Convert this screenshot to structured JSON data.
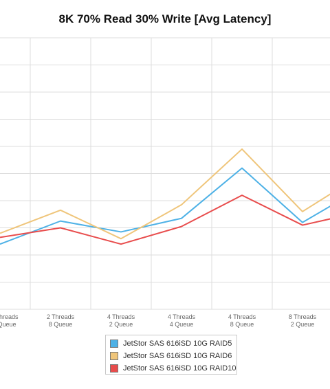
{
  "chart_data": {
    "type": "line",
    "title": "8K 70% Read 30% Write [Avg Latency]",
    "categories": [
      [
        "Threads",
        "Queue"
      ],
      [
        "2 Threads",
        "8 Queue"
      ],
      [
        "4 Threads",
        "2 Queue"
      ],
      [
        "4 Threads",
        "4 Queue"
      ],
      [
        "4 Threads",
        "8 Queue"
      ],
      [
        "8 Threads",
        "2 Queue"
      ],
      [
        "",
        ""
      ]
    ],
    "series": [
      {
        "name": "JetStor SAS 616iSD 10G RAID5",
        "color": "#4db1e6",
        "values": [
          2.4,
          3.25,
          2.85,
          3.35,
          5.2,
          3.2,
          4.5
        ]
      },
      {
        "name": "JetStor SAS 616iSD 10G RAID6",
        "color": "#efc57a",
        "values": [
          2.8,
          3.65,
          2.6,
          3.85,
          5.9,
          3.6,
          5.0
        ]
      },
      {
        "name": "JetStor SAS 616iSD 10G RAID10",
        "color": "#e84c4c",
        "values": [
          2.65,
          3.0,
          2.4,
          3.05,
          4.2,
          3.1,
          3.6
        ]
      }
    ],
    "ylim": [
      0,
      10
    ],
    "grid": true,
    "legend_position": "bottom-center"
  }
}
